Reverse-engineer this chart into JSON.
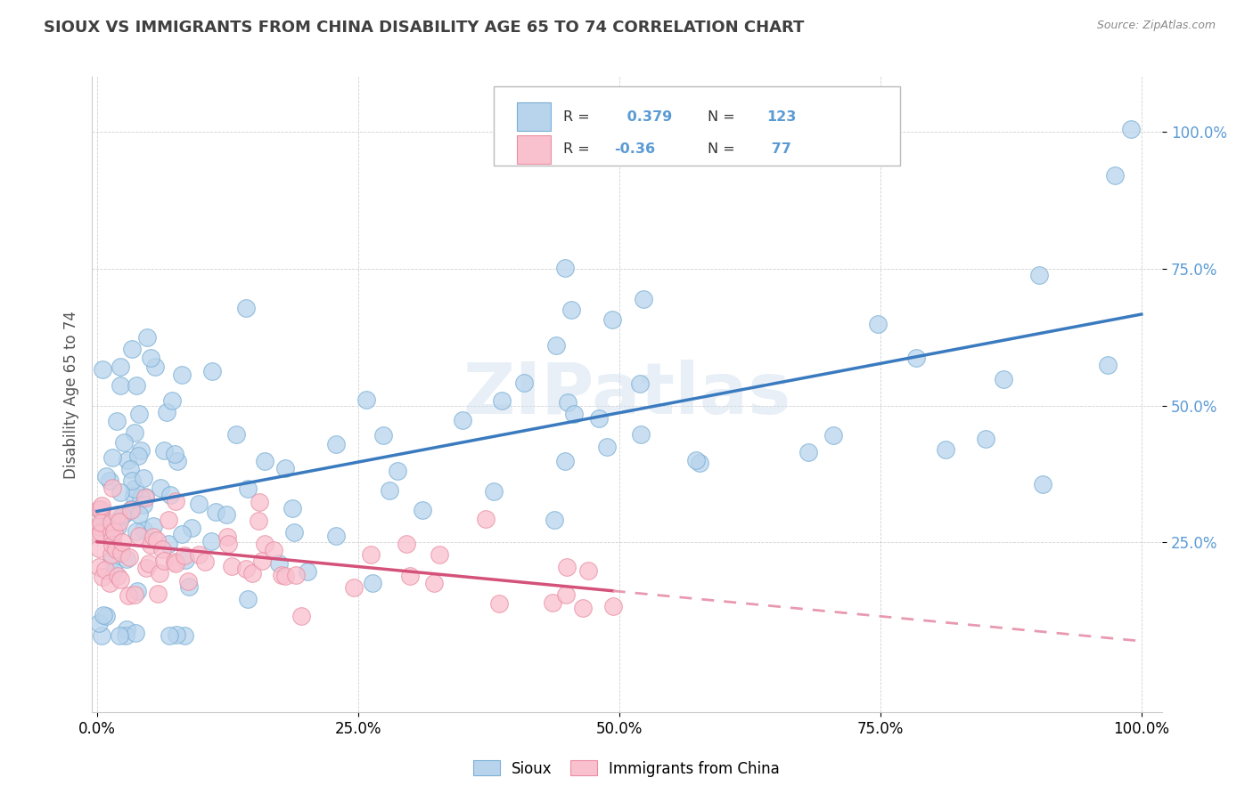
{
  "title": "SIOUX VS IMMIGRANTS FROM CHINA DISABILITY AGE 65 TO 74 CORRELATION CHART",
  "source": "Source: ZipAtlas.com",
  "ylabel": "Disability Age 65 to 74",
  "sioux_R": 0.379,
  "sioux_N": 123,
  "china_R": -0.36,
  "china_N": 77,
  "sioux_face_color": "#b8d4ed",
  "sioux_edge_color": "#7aafd4",
  "china_face_color": "#f9c0ce",
  "china_edge_color": "#e88fa2",
  "sioux_line_color": "#3a7abf",
  "china_line_solid_color": "#d4527a",
  "china_line_dash_color": "#e899b0",
  "background_color": "#ffffff",
  "watermark": "ZIPatlas",
  "ytick_color": "#5b9bd5",
  "title_color": "#404040",
  "source_color": "#888888"
}
